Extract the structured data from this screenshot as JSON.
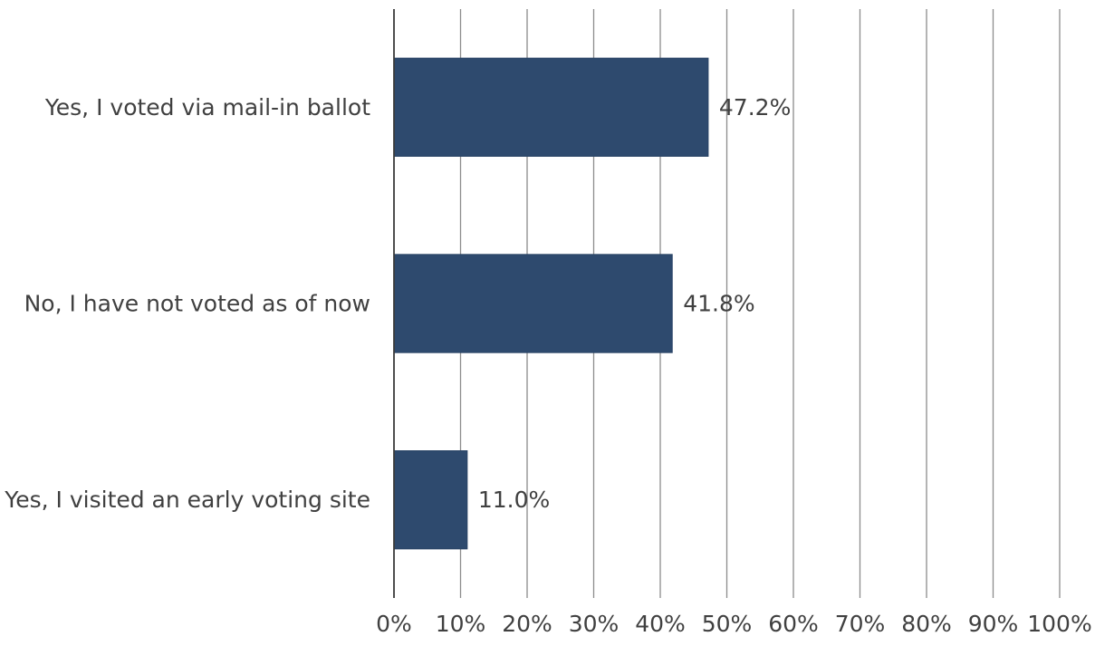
{
  "chart_data": {
    "type": "bar",
    "orientation": "horizontal",
    "title": "",
    "xlabel": "",
    "ylabel": "",
    "categories": [
      "Yes, I voted via mail-in ballot",
      "No, I have not voted as of now",
      "Yes, I visited an early voting site"
    ],
    "values": [
      47.2,
      41.8,
      11.0
    ],
    "value_labels": [
      "47.2%",
      "41.8%",
      "11.0%"
    ],
    "xlim": [
      0,
      100
    ],
    "x_ticks": [
      0,
      10,
      20,
      30,
      40,
      50,
      60,
      70,
      80,
      90,
      100
    ],
    "x_tick_labels": [
      "0%",
      "10%",
      "20%",
      "30%",
      "40%",
      "50%",
      "60%",
      "70%",
      "80%",
      "90%",
      "100%"
    ],
    "grid": "vertical",
    "legend": "none",
    "colors": {
      "bar": "#2e4a6e",
      "bar_edge": "#2a4466",
      "grid": "#8c8c8c",
      "axis": "#3a3a3a",
      "text": "#404040"
    }
  }
}
